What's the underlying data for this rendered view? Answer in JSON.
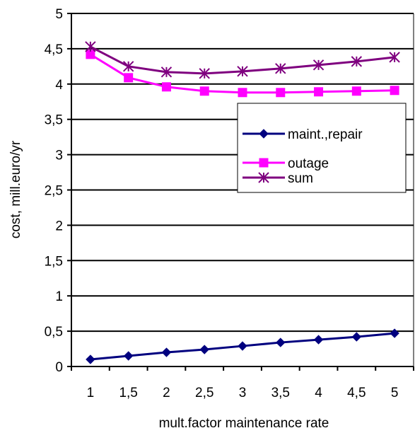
{
  "chart_data": {
    "type": "line",
    "title": "",
    "xlabel": "mult.factor maintenance rate",
    "ylabel": "cost, mill.euro/yr",
    "x": [
      1,
      1.5,
      2,
      2.5,
      3,
      3.5,
      4,
      4.5,
      5
    ],
    "x_tick_labels": [
      "1",
      "1,5",
      "2",
      "2,5",
      "3",
      "3,5",
      "4",
      "4,5",
      "5"
    ],
    "y_ticks": [
      0,
      0.5,
      1,
      1.5,
      2,
      2.5,
      3,
      3.5,
      4,
      4.5,
      5
    ],
    "y_tick_labels": [
      "0",
      "0,5",
      "1",
      "1,5",
      "2",
      "2,5",
      "3",
      "3,5",
      "4",
      "4,5",
      "5"
    ],
    "ylim": [
      0,
      5
    ],
    "grid": "horizontal",
    "legend_position": "right",
    "series": [
      {
        "name": "maint.,repair",
        "color": "#00007f",
        "marker": "diamond",
        "values": [
          0.1,
          0.15,
          0.2,
          0.24,
          0.29,
          0.34,
          0.38,
          0.42,
          0.47
        ]
      },
      {
        "name": "outage",
        "color": "#ff00ff",
        "marker": "square",
        "values": [
          4.42,
          4.09,
          3.96,
          3.9,
          3.88,
          3.88,
          3.89,
          3.9,
          3.91
        ]
      },
      {
        "name": "sum",
        "color": "#7f007f",
        "marker": "star",
        "values": [
          4.53,
          4.25,
          4.17,
          4.15,
          4.18,
          4.22,
          4.27,
          4.32,
          4.38
        ]
      }
    ]
  }
}
